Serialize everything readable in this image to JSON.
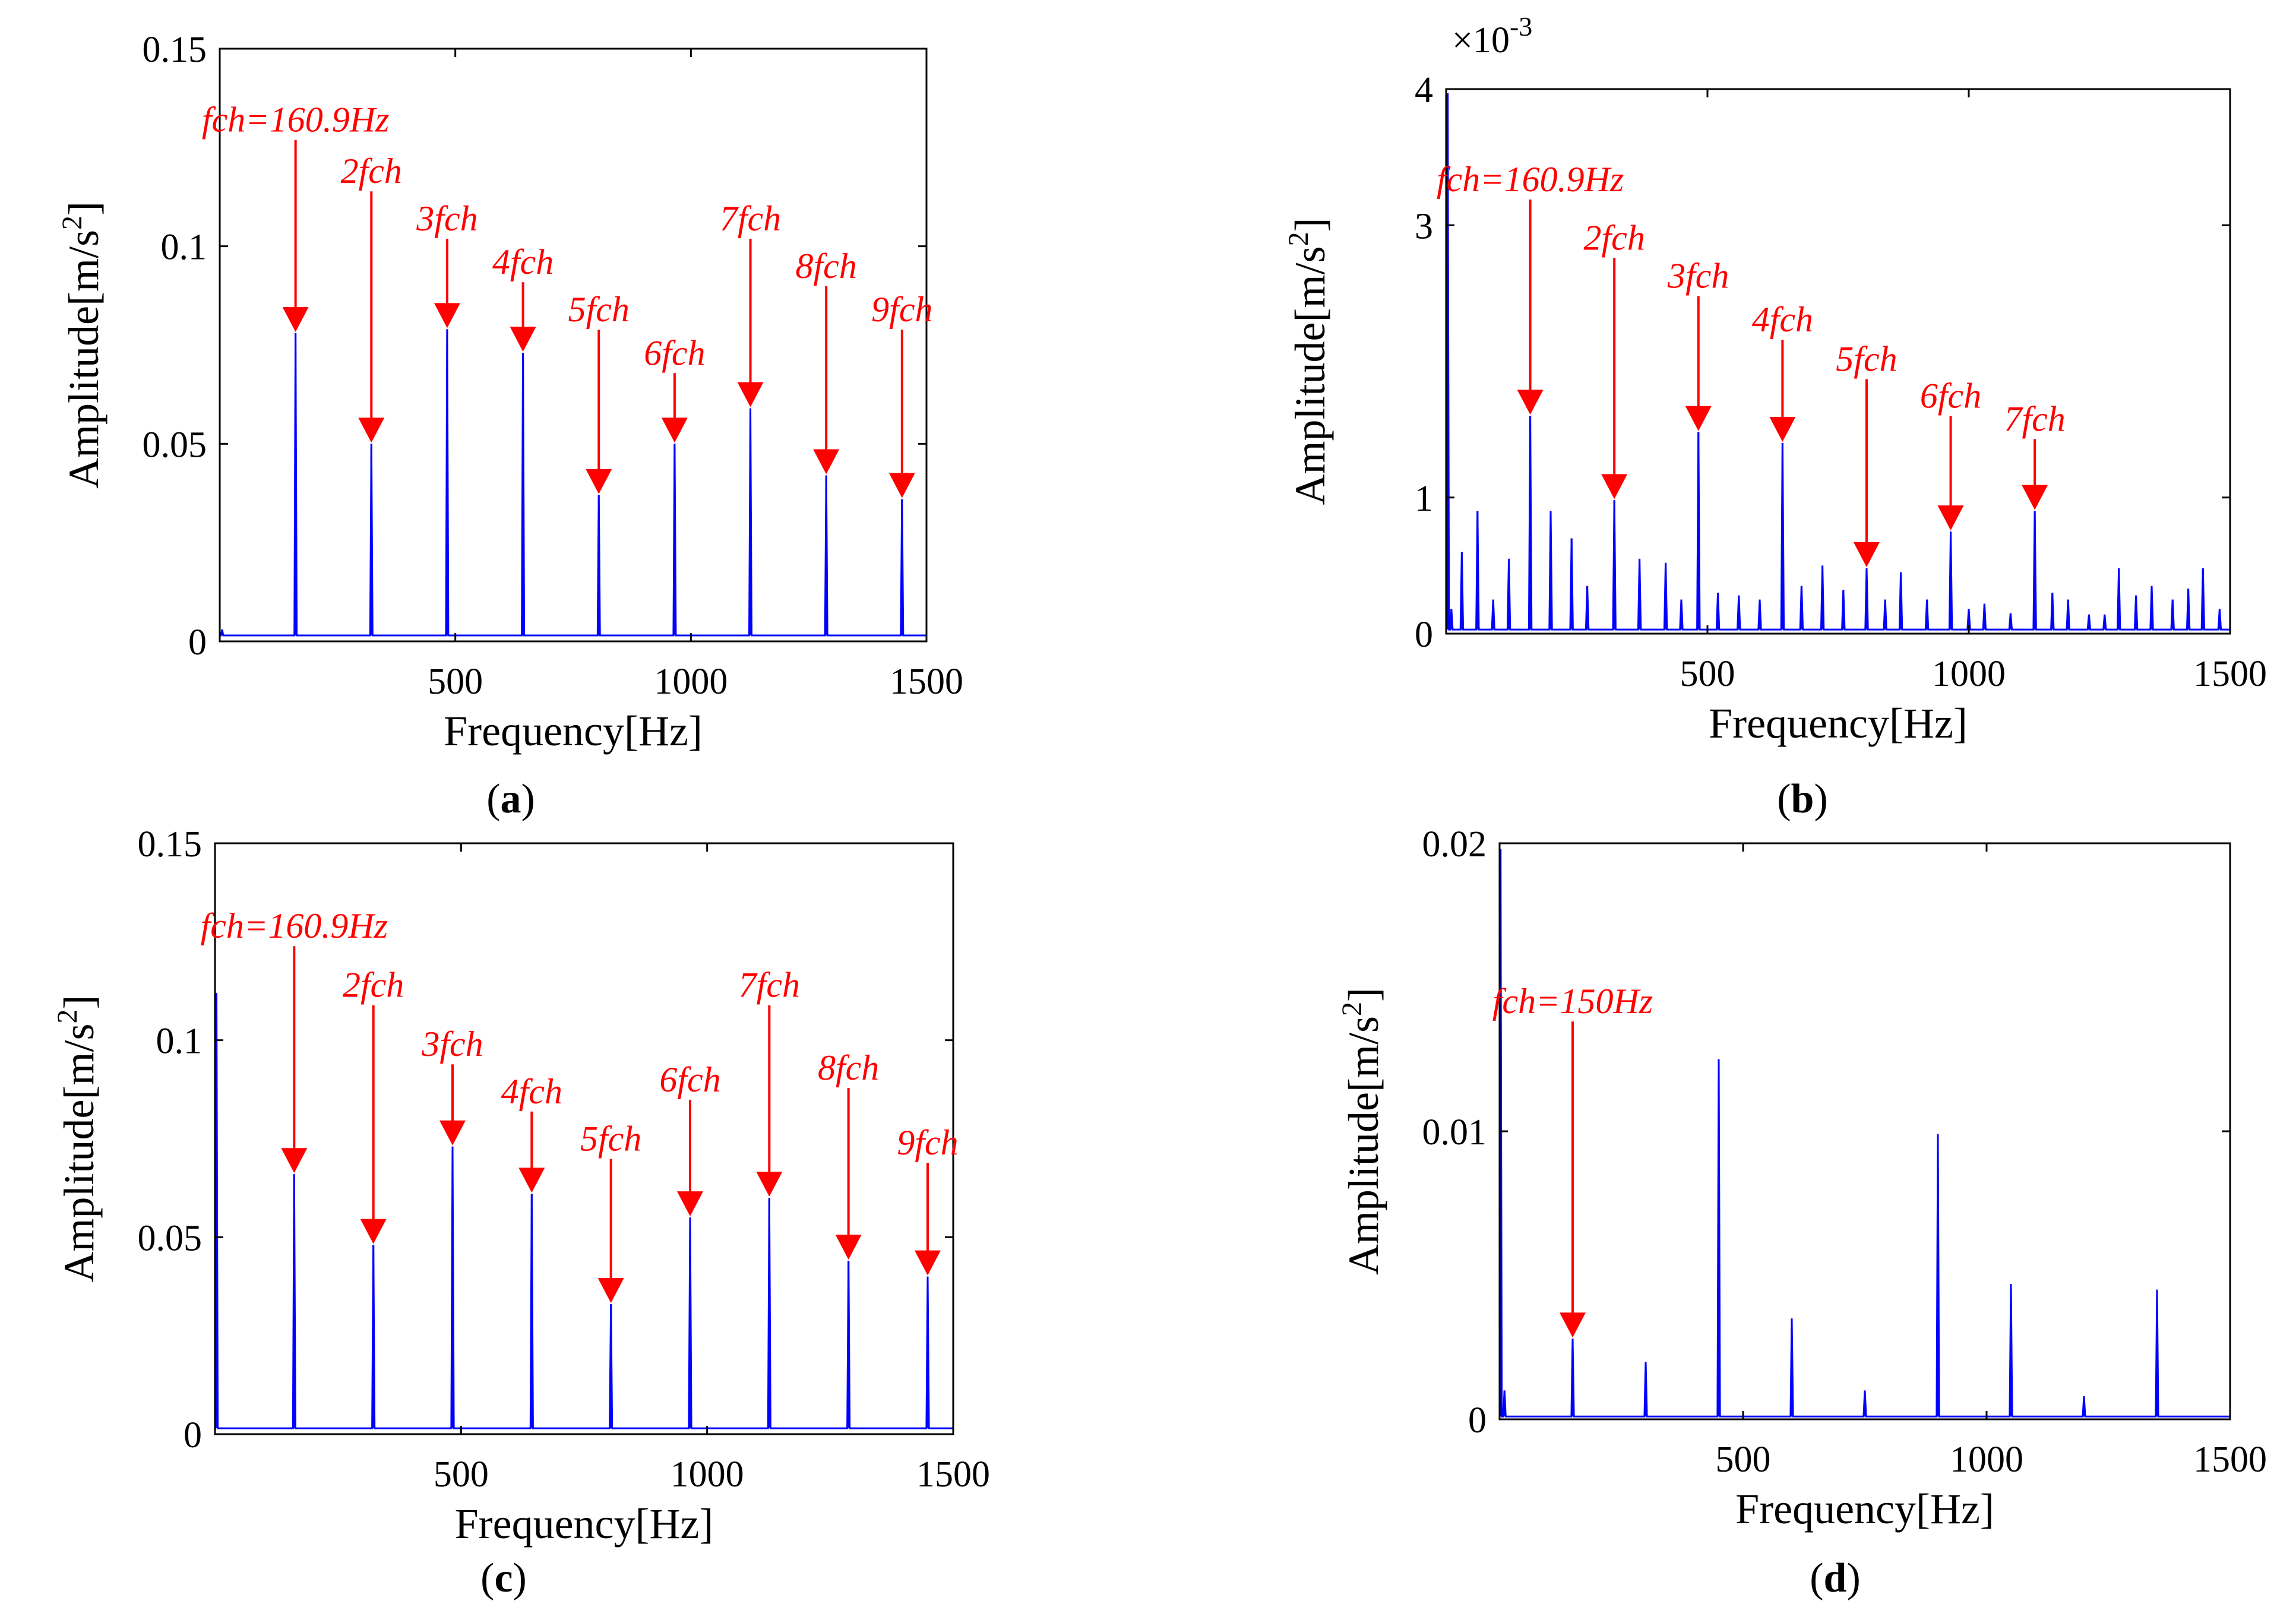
{
  "colors": {
    "spectrum": "#0000ff",
    "annotation": "#ff0000",
    "axes": "#000000"
  },
  "chart_data": [
    {
      "id": "a",
      "panel_label": "(a)",
      "type": "line",
      "xlabel": "Frequency[Hz]",
      "ylabel": "Amplitude[m/s",
      "ylabel_sup": "2",
      "ylabel_end": "]",
      "xlim": [
        0,
        1500
      ],
      "ylim": [
        0,
        0.15
      ],
      "xticks": [
        500,
        1000,
        1500
      ],
      "yticks": [
        0,
        0.05,
        0.1,
        0.15
      ],
      "ytick_labels": [
        "0",
        "0.05",
        "0.1",
        "0.15"
      ],
      "y_multiplier": "",
      "baseline": 0.0015,
      "peaks": [
        {
          "f": 5,
          "a": 0.003
        },
        {
          "f": 160.9,
          "a": 0.078
        },
        {
          "f": 321.8,
          "a": 0.05
        },
        {
          "f": 482.7,
          "a": 0.079
        },
        {
          "f": 643.6,
          "a": 0.073
        },
        {
          "f": 804.5,
          "a": 0.037
        },
        {
          "f": 965.4,
          "a": 0.05
        },
        {
          "f": 1126.3,
          "a": 0.059
        },
        {
          "f": 1287.2,
          "a": 0.042
        },
        {
          "f": 1448.1,
          "a": 0.036
        }
      ],
      "annotations": [
        {
          "text": "fch=160.9Hz",
          "f": 160.9,
          "a": 0.078,
          "label_y": 0.129
        },
        {
          "text": "2fch",
          "f": 321.8,
          "a": 0.05,
          "label_y": 0.116
        },
        {
          "text": "3fch",
          "f": 482.7,
          "a": 0.079,
          "label_y": 0.104
        },
        {
          "text": "4fch",
          "f": 643.6,
          "a": 0.073,
          "label_y": 0.093
        },
        {
          "text": "5fch",
          "f": 804.5,
          "a": 0.037,
          "label_y": 0.081
        },
        {
          "text": "6fch",
          "f": 965.4,
          "a": 0.05,
          "label_y": 0.07
        },
        {
          "text": "7fch",
          "f": 1126.3,
          "a": 0.059,
          "label_y": 0.104
        },
        {
          "text": "8fch",
          "f": 1287.2,
          "a": 0.042,
          "label_y": 0.092
        },
        {
          "text": "9fch",
          "f": 1448.1,
          "a": 0.036,
          "label_y": 0.081
        }
      ]
    },
    {
      "id": "b",
      "panel_label": "(b)",
      "type": "line",
      "xlabel": "Frequency[Hz]",
      "ylabel": "Amplitude[m/s",
      "ylabel_sup": "2",
      "ylabel_end": "]",
      "xlim": [
        0,
        1500
      ],
      "ylim": [
        0,
        0.004
      ],
      "xticks": [
        500,
        1000,
        1500
      ],
      "yticks": [
        0,
        0.001,
        0.003,
        0.004
      ],
      "ytick_labels": [
        "0",
        "1",
        "3",
        "4"
      ],
      "y_multiplier": "×10",
      "y_multiplier_exp": "-3",
      "baseline": 3e-05,
      "peaks": [
        {
          "f": 3,
          "a": 0.00397
        },
        {
          "f": 10,
          "a": 0.00018
        },
        {
          "f": 30,
          "a": 0.0006
        },
        {
          "f": 60,
          "a": 0.0009
        },
        {
          "f": 90,
          "a": 0.00025
        },
        {
          "f": 120,
          "a": 0.00055
        },
        {
          "f": 160.9,
          "a": 0.0016
        },
        {
          "f": 200,
          "a": 0.0009
        },
        {
          "f": 240,
          "a": 0.0007
        },
        {
          "f": 270,
          "a": 0.00035
        },
        {
          "f": 321.8,
          "a": 0.00098
        },
        {
          "f": 370,
          "a": 0.00055
        },
        {
          "f": 420,
          "a": 0.00052
        },
        {
          "f": 450,
          "a": 0.00025
        },
        {
          "f": 482.7,
          "a": 0.00148
        },
        {
          "f": 520,
          "a": 0.0003
        },
        {
          "f": 560,
          "a": 0.00028
        },
        {
          "f": 600,
          "a": 0.00025
        },
        {
          "f": 643.6,
          "a": 0.0014
        },
        {
          "f": 680,
          "a": 0.00035
        },
        {
          "f": 720,
          "a": 0.0005
        },
        {
          "f": 760,
          "a": 0.00032
        },
        {
          "f": 804.5,
          "a": 0.00048
        },
        {
          "f": 840,
          "a": 0.00025
        },
        {
          "f": 870,
          "a": 0.00045
        },
        {
          "f": 920,
          "a": 0.00025
        },
        {
          "f": 965.4,
          "a": 0.00075
        },
        {
          "f": 1000,
          "a": 0.00018
        },
        {
          "f": 1030,
          "a": 0.00022
        },
        {
          "f": 1080,
          "a": 0.00015
        },
        {
          "f": 1126.3,
          "a": 0.0009
        },
        {
          "f": 1160,
          "a": 0.0003
        },
        {
          "f": 1190,
          "a": 0.00025
        },
        {
          "f": 1230,
          "a": 0.00014
        },
        {
          "f": 1260,
          "a": 0.00014
        },
        {
          "f": 1287.2,
          "a": 0.00048
        },
        {
          "f": 1320,
          "a": 0.00028
        },
        {
          "f": 1350,
          "a": 0.00035
        },
        {
          "f": 1390,
          "a": 0.00025
        },
        {
          "f": 1420,
          "a": 0.00033
        },
        {
          "f": 1448.1,
          "a": 0.00048
        },
        {
          "f": 1480,
          "a": 0.00018
        }
      ],
      "annotations": [
        {
          "text": "fch=160.9Hz",
          "f": 160.9,
          "a": 0.0016,
          "label_y": 0.00325
        },
        {
          "text": "2fch",
          "f": 321.8,
          "a": 0.00098,
          "label_y": 0.00282
        },
        {
          "text": "3fch",
          "f": 482.7,
          "a": 0.00148,
          "label_y": 0.00254
        },
        {
          "text": "4fch",
          "f": 643.6,
          "a": 0.0014,
          "label_y": 0.00222
        },
        {
          "text": "5fch",
          "f": 804.5,
          "a": 0.00048,
          "label_y": 0.00193
        },
        {
          "text": "6fch",
          "f": 965.4,
          "a": 0.00075,
          "label_y": 0.00166
        },
        {
          "text": "7fch",
          "f": 1126.3,
          "a": 0.0009,
          "label_y": 0.00149
        }
      ]
    },
    {
      "id": "c",
      "panel_label": "(c)",
      "type": "line",
      "xlabel": "Frequency[Hz]",
      "ylabel": "Amplitude[m/s",
      "ylabel_sup": "2",
      "ylabel_end": "]",
      "xlim": [
        0,
        1500
      ],
      "ylim": [
        0,
        0.15
      ],
      "xticks": [
        500,
        1000,
        1500
      ],
      "yticks": [
        0,
        0.05,
        0.1,
        0.15
      ],
      "ytick_labels": [
        "0",
        "0.05",
        "0.1",
        "0.15"
      ],
      "y_multiplier": "",
      "baseline": 0.0015,
      "peaks": [
        {
          "f": 3,
          "a": 0.112
        },
        {
          "f": 160.9,
          "a": 0.066
        },
        {
          "f": 321.8,
          "a": 0.048
        },
        {
          "f": 482.7,
          "a": 0.073
        },
        {
          "f": 643.6,
          "a": 0.061
        },
        {
          "f": 804.5,
          "a": 0.033
        },
        {
          "f": 965.4,
          "a": 0.055
        },
        {
          "f": 1126.3,
          "a": 0.06
        },
        {
          "f": 1287.2,
          "a": 0.044
        },
        {
          "f": 1448.1,
          "a": 0.04
        }
      ],
      "annotations": [
        {
          "text": "fch=160.9Hz",
          "f": 160.9,
          "a": 0.066,
          "label_y": 0.126
        },
        {
          "text": "2fch",
          "f": 321.8,
          "a": 0.048,
          "label_y": 0.111
        },
        {
          "text": "3fch",
          "f": 482.7,
          "a": 0.073,
          "label_y": 0.096
        },
        {
          "text": "4fch",
          "f": 643.6,
          "a": 0.061,
          "label_y": 0.084
        },
        {
          "text": "5fch",
          "f": 804.5,
          "a": 0.033,
          "label_y": 0.072
        },
        {
          "text": "6fch",
          "f": 965.4,
          "a": 0.055,
          "label_y": 0.087
        },
        {
          "text": "7fch",
          "f": 1126.3,
          "a": 0.06,
          "label_y": 0.111
        },
        {
          "text": "8fch",
          "f": 1287.2,
          "a": 0.044,
          "label_y": 0.09
        },
        {
          "text": "9fch",
          "f": 1448.1,
          "a": 0.04,
          "label_y": 0.071
        }
      ]
    },
    {
      "id": "d",
      "panel_label": "(d)",
      "type": "line",
      "xlabel": "Frequency[Hz]",
      "ylabel": "Amplitude[m/s",
      "ylabel_sup": "2",
      "ylabel_end": "]",
      "xlim": [
        0,
        1500
      ],
      "ylim": [
        0,
        0.02
      ],
      "xticks": [
        500,
        1000,
        1500
      ],
      "yticks": [
        0,
        0.01,
        0.02
      ],
      "ytick_labels": [
        "0",
        "0.01",
        "0.02"
      ],
      "y_multiplier": "",
      "baseline": 0.0001,
      "peaks": [
        {
          "f": 2,
          "a": 0.0198
        },
        {
          "f": 10,
          "a": 0.001
        },
        {
          "f": 150,
          "a": 0.0028
        },
        {
          "f": 300,
          "a": 0.002
        },
        {
          "f": 450,
          "a": 0.0125
        },
        {
          "f": 600,
          "a": 0.0035
        },
        {
          "f": 750,
          "a": 0.001
        },
        {
          "f": 900,
          "a": 0.0099
        },
        {
          "f": 1050,
          "a": 0.0047
        },
        {
          "f": 1200,
          "a": 0.0008
        },
        {
          "f": 1350,
          "a": 0.0045
        }
      ],
      "annotations": [
        {
          "text": "fch=150Hz",
          "f": 150,
          "a": 0.0028,
          "label_y": 0.0141
        }
      ]
    }
  ]
}
